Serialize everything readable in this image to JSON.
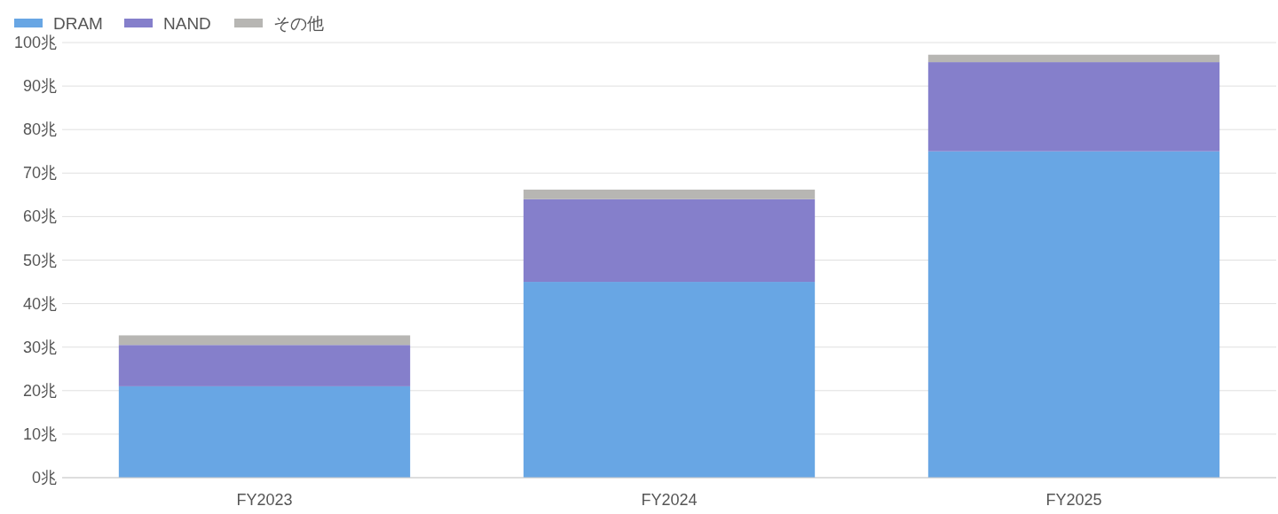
{
  "chart_data": {
    "type": "bar",
    "stacked": true,
    "categories": [
      "FY2023",
      "FY2024",
      "FY2025"
    ],
    "series": [
      {
        "name": "DRAM",
        "color": "#68a6e4",
        "values": [
          21,
          45,
          75
        ]
      },
      {
        "name": "NAND",
        "color": "#857fcb",
        "values": [
          9.5,
          19,
          20.5
        ]
      },
      {
        "name": "その他",
        "color": "#b7b6b3",
        "values": [
          2.2,
          2.2,
          1.7
        ]
      }
    ],
    "ylim": [
      0,
      100
    ],
    "yticks": [
      {
        "value": 0,
        "label": "0兆"
      },
      {
        "value": 10,
        "label": "10兆"
      },
      {
        "value": 20,
        "label": "20兆"
      },
      {
        "value": 30,
        "label": "30兆"
      },
      {
        "value": 40,
        "label": "40兆"
      },
      {
        "value": 50,
        "label": "50兆"
      },
      {
        "value": 60,
        "label": "60兆"
      },
      {
        "value": 70,
        "label": "70兆"
      },
      {
        "value": 80,
        "label": "80兆"
      },
      {
        "value": 90,
        "label": "90兆"
      },
      {
        "value": 100,
        "label": "100兆"
      }
    ],
    "grid": "y",
    "legend": "top left"
  }
}
